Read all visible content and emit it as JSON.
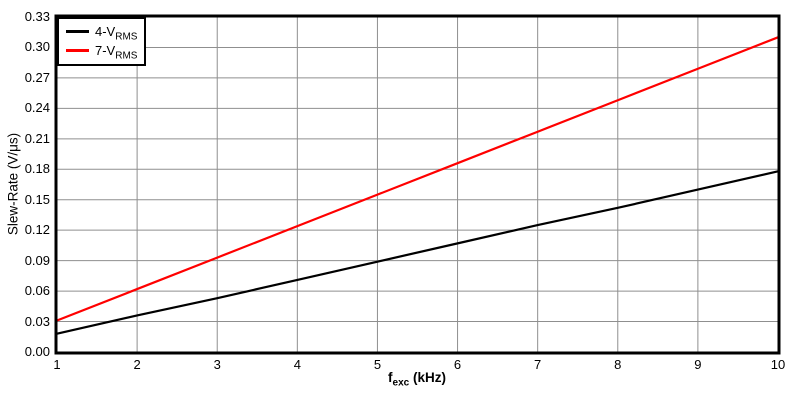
{
  "chart_data": {
    "type": "line",
    "title": "",
    "xlabel": "fexc (kHz)",
    "ylabel": "Slew-Rate (V/μs)",
    "xlim": [
      1,
      10
    ],
    "ylim": [
      0.0,
      0.33
    ],
    "x_ticks": [
      "1",
      "2",
      "3",
      "4",
      "5",
      "6",
      "7",
      "8",
      "9",
      "10"
    ],
    "y_ticks": [
      "0.00",
      "0.03",
      "0.06",
      "0.09",
      "0.12",
      "0.15",
      "0.18",
      "0.21",
      "0.24",
      "0.27",
      "0.30",
      "0.33"
    ],
    "grid": true,
    "legend_position": "top-left",
    "x": [
      1,
      2,
      3,
      4,
      5,
      6,
      7,
      8,
      9,
      10
    ],
    "series": [
      {
        "name": "4-VRMS",
        "label_main": "4-V",
        "label_sub": "RMS",
        "color": "#000000",
        "values": [
          0.018,
          0.036,
          0.053,
          0.071,
          0.089,
          0.107,
          0.125,
          0.142,
          0.16,
          0.178
        ]
      },
      {
        "name": "7-VRMS",
        "label_main": "7-V",
        "label_sub": "RMS",
        "color": "#ff0000",
        "values": [
          0.031,
          0.062,
          0.093,
          0.124,
          0.155,
          0.186,
          0.217,
          0.248,
          0.279,
          0.31
        ]
      }
    ]
  },
  "axes": {
    "x_title": {
      "prefix": "f",
      "sub": "exc",
      "suffix": " (kHz)"
    },
    "y_title": "Slew-Rate (V/μs)"
  },
  "colors": {
    "background": "#ffffff",
    "plot_border": "#000000",
    "grid": "#8f8f8f",
    "series_black": "#000000",
    "series_red": "#ff0000"
  }
}
